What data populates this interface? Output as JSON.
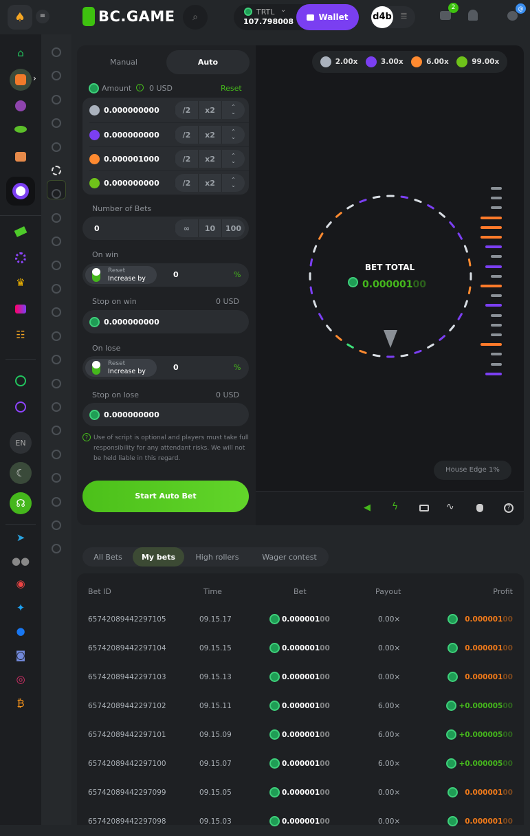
{
  "header": {
    "brand": "BC.GAME",
    "currency": "TRTL",
    "balance": "107.798008",
    "wallet_label": "Wallet",
    "avatar_text": "d4b",
    "mail_badge": "2",
    "chat_badge": "@"
  },
  "nav": {
    "language": "EN"
  },
  "controls": {
    "tabs": [
      "Manual",
      "Auto"
    ],
    "active_tab": "Auto",
    "amount_label": "Amount",
    "amount_usd": "0 USD",
    "reset_label": "Reset",
    "amounts": [
      {
        "color": "#aab2bd",
        "value": "0.000000000"
      },
      {
        "color": "#7b3ff2",
        "value": "0.000000000"
      },
      {
        "color": "#ff8a30",
        "value": "0.000001000"
      },
      {
        "color": "#6fc21a",
        "value": "0.000000000"
      }
    ],
    "half": "/2",
    "double": "x2",
    "num_bets_label": "Number of Bets",
    "num_bets": "0",
    "num_bets_options": [
      "∞",
      "10",
      "100"
    ],
    "on_win_label": "On win",
    "on_lose_label": "On lose",
    "reset_opt": "Reset",
    "increase_opt": "Increase by",
    "on_win_value": "0",
    "on_lose_value": "0",
    "percent": "%",
    "stop_win_label": "Stop on win",
    "stop_win_usd": "0 USD",
    "stop_win_value": "0.000000000",
    "stop_lose_label": "Stop on lose",
    "stop_lose_usd": "0 USD",
    "stop_lose_value": "0.000000000",
    "disclaimer": "Use of script is optional and players must take full responsibility for any attendant risks. We will not be held liable in this regard.",
    "start_label": "Start Auto Bet"
  },
  "game": {
    "multipliers": [
      {
        "color": "#aab2bd",
        "label": "2.00x"
      },
      {
        "color": "#7b3ff2",
        "label": "3.00x"
      },
      {
        "color": "#ff8a30",
        "label": "6.00x"
      },
      {
        "color": "#6fc21a",
        "label": "99.00x"
      }
    ],
    "bet_total_label": "BET TOTAL",
    "bet_total_main": "0.000001",
    "bet_total_dim": "00",
    "house_edge": "House Edge 1%",
    "wheel_segments": [
      "w",
      "p",
      "w",
      "p",
      "w",
      "p",
      "p",
      "w",
      "o",
      "w",
      "o",
      "w",
      "p",
      "w",
      "p",
      "w",
      "p",
      "w",
      "p",
      "w",
      "o",
      "g",
      "o",
      "w",
      "p",
      "w",
      "p",
      "w",
      "p",
      "w",
      "o",
      "w",
      "o",
      "w",
      "p",
      "w"
    ],
    "history": [
      "g",
      "g",
      "g",
      "o",
      "o",
      "o",
      "p",
      "g",
      "p",
      "g",
      "o",
      "g",
      "p",
      "g",
      "g",
      "g",
      "o",
      "g",
      "g",
      "p"
    ],
    "segment_colors": {
      "w": "#d8dde3",
      "p": "#7b3ff2",
      "o": "#ff8a30",
      "g": "#3ee07a"
    }
  },
  "bets": {
    "tabs": [
      "All Bets",
      "My bets",
      "High rollers",
      "Wager contest"
    ],
    "active": "My bets",
    "columns": [
      "Bet ID",
      "Time",
      "Bet",
      "Payout",
      "Profit"
    ],
    "rows": [
      {
        "id": "65742089442297105",
        "time": "09.15.17",
        "bet": "0.000001",
        "bet_dim": "00",
        "payout": "0.00×",
        "profit": "0.000001",
        "profit_dim": "00",
        "win": false
      },
      {
        "id": "65742089442297104",
        "time": "09.15.15",
        "bet": "0.000001",
        "bet_dim": "00",
        "payout": "0.00×",
        "profit": "0.000001",
        "profit_dim": "00",
        "win": false
      },
      {
        "id": "65742089442297103",
        "time": "09.15.13",
        "bet": "0.000001",
        "bet_dim": "00",
        "payout": "0.00×",
        "profit": "0.000001",
        "profit_dim": "00",
        "win": false
      },
      {
        "id": "65742089442297102",
        "time": "09.15.11",
        "bet": "0.000001",
        "bet_dim": "00",
        "payout": "6.00×",
        "profit": "+0.000005",
        "profit_dim": "00",
        "win": true
      },
      {
        "id": "65742089442297101",
        "time": "09.15.09",
        "bet": "0.000001",
        "bet_dim": "00",
        "payout": "6.00×",
        "profit": "+0.000005",
        "profit_dim": "00",
        "win": true
      },
      {
        "id": "65742089442297100",
        "time": "09.15.07",
        "bet": "0.000001",
        "bet_dim": "00",
        "payout": "6.00×",
        "profit": "+0.000005",
        "profit_dim": "00",
        "win": true
      },
      {
        "id": "65742089442297099",
        "time": "09.15.05",
        "bet": "0.000001",
        "bet_dim": "00",
        "payout": "0.00×",
        "profit": "0.000001",
        "profit_dim": "00",
        "win": false
      },
      {
        "id": "65742089442297098",
        "time": "09.15.03",
        "bet": "0.000001",
        "bet_dim": "00",
        "payout": "0.00×",
        "profit": "0.000001",
        "profit_dim": "00",
        "win": false
      }
    ]
  }
}
